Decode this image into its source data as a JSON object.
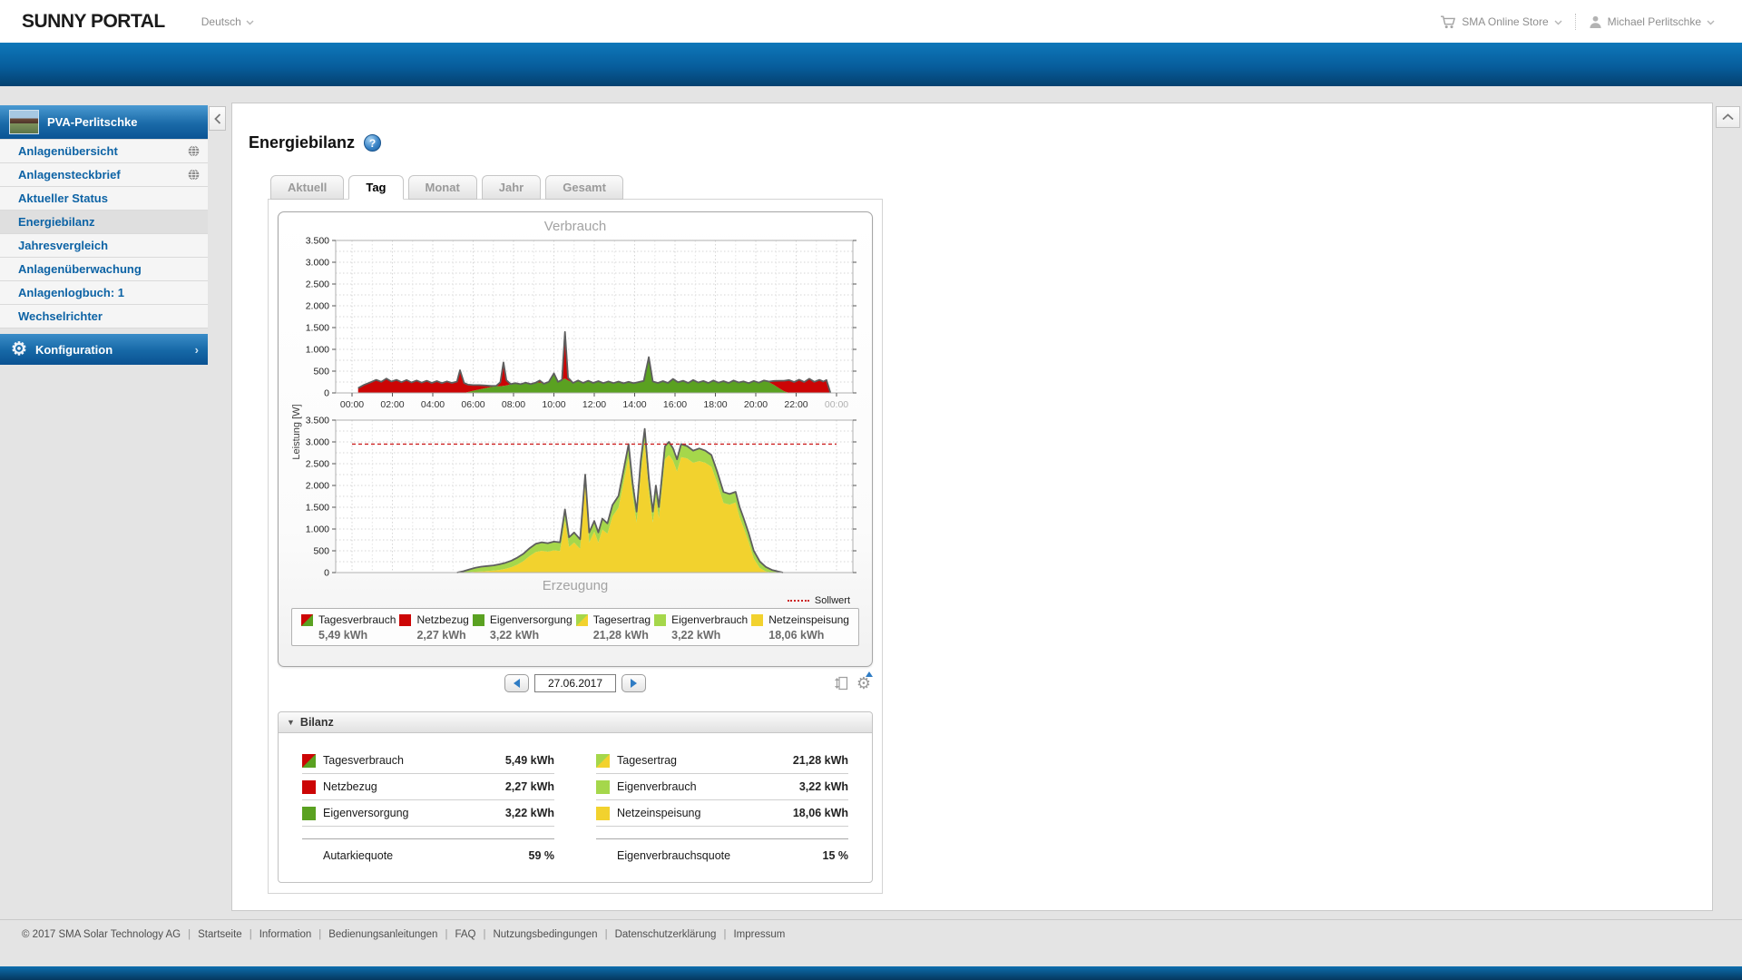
{
  "header": {
    "logo": "SUNNY PORTAL",
    "language": "Deutsch",
    "store": "SMA Online Store",
    "user": "Michael Perlitschke"
  },
  "sidebar": {
    "plant": "PVA-Perlitschke",
    "items": [
      {
        "label": "Anlagenübersicht",
        "globe": true
      },
      {
        "label": "Anlagensteckbrief",
        "globe": true
      },
      {
        "label": "Aktueller Status"
      },
      {
        "label": "Energiebilanz",
        "selected": true
      },
      {
        "label": "Jahresvergleich"
      },
      {
        "label": "Anlagenüberwachung"
      },
      {
        "label": "Anlagenlogbuch: 1"
      },
      {
        "label": "Wechselrichter"
      }
    ],
    "config": "Konfiguration"
  },
  "main": {
    "title": "Energiebilanz",
    "help": "?",
    "tabs": [
      {
        "label": "Aktuell"
      },
      {
        "label": "Tag",
        "active": true
      },
      {
        "label": "Monat"
      },
      {
        "label": "Jahr"
      },
      {
        "label": "Gesamt"
      }
    ],
    "date": "27.06.2017"
  },
  "legend": {
    "entries": [
      {
        "label": "Tagesverbrauch",
        "value": "5,49 kWh",
        "chip": [
          "#cc0505",
          "#5aa121"
        ]
      },
      {
        "label": "Netzbezug",
        "value": "2,27 kWh",
        "chip": [
          "#cc0505"
        ]
      },
      {
        "label": "Eigenversorgung",
        "value": "3,22 kWh",
        "chip": [
          "#5aa121"
        ]
      },
      {
        "label": "Tagesertrag",
        "value": "21,28 kWh",
        "chip": [
          "#a5d74b",
          "#f2d22e"
        ]
      },
      {
        "label": "Eigenverbrauch",
        "value": "3,22 kWh",
        "chip": [
          "#a5d74b"
        ]
      },
      {
        "label": "Netzeinspeisung",
        "value": "18,06 kWh",
        "chip": [
          "#f2d22e"
        ]
      }
    ]
  },
  "balance": {
    "title": "Bilanz",
    "left": [
      {
        "label": "Tagesverbrauch",
        "value": "5,49 kWh",
        "chip": [
          "#cc0505",
          "#5aa121"
        ]
      },
      {
        "label": "Netzbezug",
        "value": "2,27 kWh",
        "chip": [
          "#cc0505"
        ]
      },
      {
        "label": "Eigenversorgung",
        "value": "3,22 kWh",
        "chip": [
          "#5aa121"
        ]
      }
    ],
    "right": [
      {
        "label": "Tagesertrag",
        "value": "21,28 kWh",
        "chip": [
          "#a5d74b",
          "#f2d22e"
        ]
      },
      {
        "label": "Eigenverbrauch",
        "value": "3,22 kWh",
        "chip": [
          "#a5d74b"
        ]
      },
      {
        "label": "Netzeinspeisung",
        "value": "18,06 kWh",
        "chip": [
          "#f2d22e"
        ]
      }
    ],
    "left_quote": {
      "label": "Autarkiequote",
      "value": "59 %"
    },
    "right_quote": {
      "label": "Eigenverbrauchsquote",
      "value": "15 %"
    }
  },
  "footer": {
    "items": [
      "© 2017 SMA Solar Technology AG",
      "Startseite",
      "Information",
      "Bedienungsanleitungen",
      "FAQ",
      "Nutzungsbedingungen",
      "Datenschutzerklärung",
      "Impressum"
    ]
  },
  "colors": {
    "accent_blue": "#0d63a5",
    "red": "#cc0505",
    "green": "#5aa121",
    "light_green": "#a5d74b",
    "yellow": "#f2d22e"
  },
  "chart_data": [
    {
      "type": "area",
      "title": "Verbrauch",
      "ylabel": "Leistung [W]",
      "ylim": [
        0,
        3500
      ],
      "yticks": [
        "0",
        "500",
        "1.000",
        "1.500",
        "2.000",
        "2.500",
        "3.000",
        "3.500"
      ],
      "xticks": [
        "00:00",
        "02:00",
        "04:00",
        "06:00",
        "08:00",
        "10:00",
        "12:00",
        "14:00",
        "16:00",
        "18:00",
        "20:00",
        "22:00",
        "00:00"
      ],
      "x_unit": "hours",
      "grid": true,
      "stacked": true,
      "series": [
        {
          "name": "Eigenversorgung",
          "color": "#5aa121"
        },
        {
          "name": "Netzbezug",
          "color": "#cc0505"
        }
      ],
      "outline": {
        "name": "Tagesverbrauch",
        "color": "#5e5e5e"
      },
      "points": [
        [
          0.3,
          0,
          110
        ],
        [
          0.6,
          0,
          185
        ],
        [
          0.9,
          0,
          240
        ],
        [
          1.2,
          0,
          300
        ],
        [
          1.45,
          0,
          255
        ],
        [
          1.7,
          0,
          330
        ],
        [
          1.95,
          0,
          260
        ],
        [
          2.2,
          0,
          300
        ],
        [
          2.45,
          0,
          245
        ],
        [
          2.7,
          0,
          295
        ],
        [
          2.95,
          0,
          240
        ],
        [
          3.2,
          0,
          285
        ],
        [
          3.45,
          0,
          235
        ],
        [
          3.7,
          0,
          280
        ],
        [
          3.95,
          0,
          230
        ],
        [
          4.2,
          0,
          270
        ],
        [
          4.45,
          0,
          225
        ],
        [
          4.7,
          0,
          265
        ],
        [
          4.95,
          0,
          230
        ],
        [
          5.2,
          0,
          260
        ],
        [
          5.35,
          0,
          520
        ],
        [
          5.55,
          0,
          230
        ],
        [
          5.75,
          20,
          170
        ],
        [
          6.0,
          50,
          130
        ],
        [
          6.3,
          80,
          100
        ],
        [
          6.6,
          110,
          60
        ],
        [
          6.9,
          135,
          25
        ],
        [
          7.15,
          150,
          15
        ],
        [
          7.35,
          155,
          90
        ],
        [
          7.5,
          160,
          540
        ],
        [
          7.65,
          170,
          120
        ],
        [
          7.85,
          195,
          10
        ],
        [
          8.1,
          225,
          0
        ],
        [
          8.35,
          200,
          0
        ],
        [
          8.6,
          235,
          0
        ],
        [
          8.85,
          205,
          0
        ],
        [
          9.1,
          235,
          0
        ],
        [
          9.3,
          240,
          45
        ],
        [
          9.5,
          210,
          0
        ],
        [
          9.75,
          255,
          0
        ],
        [
          10.0,
          450,
          0
        ],
        [
          10.2,
          255,
          0
        ],
        [
          10.4,
          300,
          0
        ],
        [
          10.55,
          330,
          1070
        ],
        [
          10.7,
          285,
          65
        ],
        [
          10.95,
          230,
          0
        ],
        [
          11.2,
          285,
          0
        ],
        [
          11.45,
          230,
          0
        ],
        [
          11.7,
          280,
          0
        ],
        [
          11.95,
          230,
          0
        ],
        [
          12.2,
          270,
          0
        ],
        [
          12.45,
          225,
          0
        ],
        [
          12.7,
          265,
          0
        ],
        [
          12.95,
          225,
          0
        ],
        [
          13.2,
          260,
          0
        ],
        [
          13.45,
          220,
          0
        ],
        [
          13.7,
          255,
          0
        ],
        [
          13.95,
          225,
          0
        ],
        [
          14.2,
          250,
          0
        ],
        [
          14.45,
          275,
          0
        ],
        [
          14.7,
          820,
          0
        ],
        [
          14.9,
          265,
          0
        ],
        [
          15.15,
          230,
          0
        ],
        [
          15.4,
          270,
          0
        ],
        [
          15.65,
          230,
          0
        ],
        [
          15.9,
          320,
          0
        ],
        [
          16.15,
          245,
          0
        ],
        [
          16.4,
          280,
          0
        ],
        [
          16.65,
          230,
          0
        ],
        [
          16.9,
          295,
          0
        ],
        [
          17.15,
          240,
          0
        ],
        [
          17.4,
          275,
          0
        ],
        [
          17.65,
          230,
          0
        ],
        [
          17.9,
          285,
          0
        ],
        [
          18.15,
          235,
          0
        ],
        [
          18.4,
          270,
          0
        ],
        [
          18.65,
          230,
          0
        ],
        [
          18.9,
          285,
          0
        ],
        [
          19.15,
          240,
          0
        ],
        [
          19.4,
          265,
          0
        ],
        [
          19.65,
          225,
          0
        ],
        [
          19.9,
          275,
          0
        ],
        [
          20.15,
          235,
          0
        ],
        [
          20.4,
          285,
          0
        ],
        [
          20.65,
          245,
          15
        ],
        [
          20.9,
          185,
          90
        ],
        [
          21.15,
          110,
          170
        ],
        [
          21.4,
          40,
          240
        ],
        [
          21.65,
          0,
          295
        ],
        [
          21.9,
          0,
          250
        ],
        [
          22.15,
          0,
          305
        ],
        [
          22.4,
          0,
          250
        ],
        [
          22.65,
          0,
          325
        ],
        [
          22.9,
          0,
          255
        ],
        [
          23.15,
          0,
          300
        ],
        [
          23.35,
          0,
          260
        ],
        [
          23.5,
          0,
          295
        ],
        [
          23.6,
          0,
          150
        ],
        [
          23.7,
          0,
          0
        ]
      ]
    },
    {
      "type": "area",
      "title": "Erzeugung",
      "ylabel": "Leistung [W]",
      "ylim": [
        0,
        3500
      ],
      "yticks": [
        "0",
        "500",
        "1.000",
        "1.500",
        "2.000",
        "2.500",
        "3.000",
        "3.500"
      ],
      "xticks": [
        "00:00",
        "02:00",
        "04:00",
        "06:00",
        "08:00",
        "10:00",
        "12:00",
        "14:00",
        "16:00",
        "18:00",
        "20:00",
        "22:00",
        "00:00"
      ],
      "x_unit": "hours",
      "grid": true,
      "stacked": true,
      "show_x_labels": false,
      "series": [
        {
          "name": "Netzeinspeisung",
          "color": "#f2d22e"
        },
        {
          "name": "Eigenverbrauch",
          "color": "#a5d74b"
        }
      ],
      "outline": {
        "name": "Tagesertrag",
        "color": "#5e5e5e"
      },
      "target_line": {
        "label": "Sollwert",
        "value": 2950,
        "color": "#cc2222"
      },
      "points": [
        [
          5.2,
          0,
          0
        ],
        [
          5.5,
          0,
          30
        ],
        [
          5.8,
          10,
          60
        ],
        [
          6.1,
          20,
          90
        ],
        [
          6.4,
          25,
          110
        ],
        [
          6.7,
          35,
          115
        ],
        [
          7.0,
          45,
          120
        ],
        [
          7.3,
          60,
          130
        ],
        [
          7.6,
          85,
          140
        ],
        [
          7.9,
          125,
          150
        ],
        [
          8.2,
          185,
          160
        ],
        [
          8.5,
          265,
          170
        ],
        [
          8.8,
          380,
          180
        ],
        [
          9.1,
          470,
          190
        ],
        [
          9.4,
          500,
          195
        ],
        [
          9.7,
          480,
          195
        ],
        [
          10.0,
          510,
          200
        ],
        [
          10.3,
          495,
          200
        ],
        [
          10.55,
          1200,
          250
        ],
        [
          10.75,
          590,
          220
        ],
        [
          11.0,
          690,
          230
        ],
        [
          11.3,
          545,
          220
        ],
        [
          11.55,
          2000,
          250
        ],
        [
          11.75,
          690,
          230
        ],
        [
          12.0,
          940,
          245
        ],
        [
          12.2,
          690,
          230
        ],
        [
          12.4,
          990,
          250
        ],
        [
          12.65,
          890,
          240
        ],
        [
          12.9,
          1290,
          260
        ],
        [
          13.2,
          1490,
          270
        ],
        [
          13.5,
          2190,
          280
        ],
        [
          13.7,
          2650,
          300
        ],
        [
          13.9,
          1770,
          280
        ],
        [
          14.1,
          1150,
          250
        ],
        [
          14.3,
          2280,
          285
        ],
        [
          14.5,
          3000,
          300
        ],
        [
          14.7,
          1890,
          280
        ],
        [
          14.9,
          1150,
          250
        ],
        [
          15.05,
          1720,
          280
        ],
        [
          15.2,
          1250,
          255
        ],
        [
          15.5,
          2600,
          300
        ],
        [
          15.7,
          2700,
          300
        ],
        [
          15.9,
          2570,
          285
        ],
        [
          16.1,
          2320,
          280
        ],
        [
          16.3,
          2650,
          300
        ],
        [
          16.6,
          2620,
          285
        ],
        [
          16.9,
          2520,
          280
        ],
        [
          17.2,
          2560,
          290
        ],
        [
          17.5,
          2520,
          280
        ],
        [
          17.8,
          2430,
          270
        ],
        [
          18.1,
          2050,
          255
        ],
        [
          18.4,
          1600,
          250
        ],
        [
          18.7,
          1560,
          245
        ],
        [
          19.0,
          1610,
          245
        ],
        [
          19.2,
          1270,
          235
        ],
        [
          19.4,
          1030,
          220
        ],
        [
          19.65,
          700,
          205
        ],
        [
          19.9,
          320,
          180
        ],
        [
          20.2,
          105,
          150
        ],
        [
          20.5,
          25,
          105
        ],
        [
          20.8,
          0,
          60
        ],
        [
          21.1,
          0,
          25
        ],
        [
          21.35,
          0,
          0
        ]
      ]
    }
  ]
}
